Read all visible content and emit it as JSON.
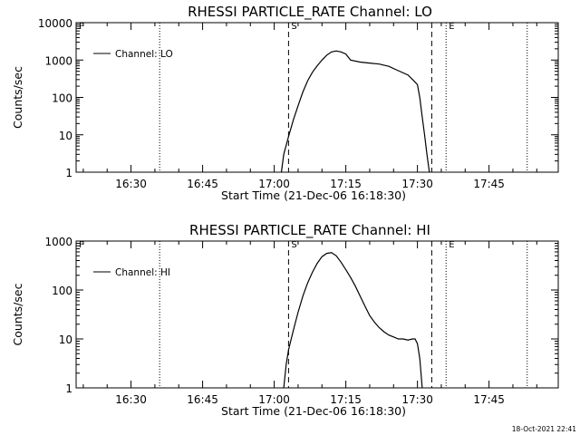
{
  "footer": {
    "timestamp": "18-Oct-2021 22:41"
  },
  "chart_data": [
    {
      "type": "line",
      "title": "RHESSI PARTICLE_RATE Channel: LO",
      "xlabel": "Start Time (21-Dec-06 16:18:30)",
      "ylabel": "Counts/sec",
      "yscale": "log",
      "xlim": [
        "16:18:30",
        "17:59:30"
      ],
      "ylim": [
        1,
        10000
      ],
      "xticks": [
        "16:30",
        "16:45",
        "17:00",
        "17:15",
        "17:30",
        "17:45"
      ],
      "yticks": [
        "1",
        "10",
        "100",
        "1000",
        "10000"
      ],
      "legend": {
        "position": "top-left",
        "entries": [
          "Channel: LO"
        ]
      },
      "markers": [
        {
          "label": "F",
          "time": "16:18:30",
          "style": "none"
        },
        {
          "label": "",
          "time": "16:36:00",
          "style": "dotted"
        },
        {
          "label": "S",
          "time": "17:03:00",
          "style": "dashed"
        },
        {
          "label": "",
          "time": "17:33:00",
          "style": "dashed"
        },
        {
          "label": "E",
          "time": "17:36:00",
          "style": "dotted"
        },
        {
          "label": "",
          "time": "17:53:00",
          "style": "dotted"
        }
      ],
      "series": [
        {
          "name": "Channel: LO",
          "x": [
            "17:01:30",
            "17:02:00",
            "17:03:00",
            "17:04:00",
            "17:05:00",
            "17:06:00",
            "17:07:00",
            "17:08:00",
            "17:09:00",
            "17:10:00",
            "17:11:00",
            "17:12:00",
            "17:13:00",
            "17:14:00",
            "17:15:00",
            "17:16:00",
            "17:18:00",
            "17:20:00",
            "17:22:00",
            "17:24:00",
            "17:26:00",
            "17:28:00",
            "17:29:00",
            "17:30:00",
            "17:30:30",
            "17:31:00",
            "17:31:30",
            "17:32:00",
            "17:32:30"
          ],
          "y": [
            1.0,
            3,
            9,
            25,
            60,
            140,
            280,
            470,
            700,
            1000,
            1350,
            1650,
            1750,
            1650,
            1450,
            1000,
            880,
            830,
            780,
            680,
            520,
            400,
            300,
            220,
            100,
            30,
            10,
            3,
            1.0
          ]
        }
      ]
    },
    {
      "type": "line",
      "title": "RHESSI PARTICLE_RATE Channel: HI",
      "xlabel": "Start Time (21-Dec-06 16:18:30)",
      "ylabel": "Counts/sec",
      "yscale": "log",
      "xlim": [
        "16:18:30",
        "17:59:30"
      ],
      "ylim": [
        1,
        1000
      ],
      "xticks": [
        "16:30",
        "16:45",
        "17:00",
        "17:15",
        "17:30",
        "17:45"
      ],
      "yticks": [
        "1",
        "10",
        "100",
        "1000"
      ],
      "legend": {
        "position": "top-left",
        "entries": [
          "Channel: HI"
        ]
      },
      "markers": [
        {
          "label": "F",
          "time": "16:18:30",
          "style": "none"
        },
        {
          "label": "",
          "time": "16:36:00",
          "style": "dotted"
        },
        {
          "label": "S",
          "time": "17:03:00",
          "style": "dashed"
        },
        {
          "label": "",
          "time": "17:33:00",
          "style": "dashed"
        },
        {
          "label": "E",
          "time": "17:36:00",
          "style": "dotted"
        },
        {
          "label": "",
          "time": "17:53:00",
          "style": "dotted"
        }
      ],
      "series": [
        {
          "name": "Channel: HI",
          "x": [
            "17:02:00",
            "17:02:30",
            "17:03:00",
            "17:04:00",
            "17:05:00",
            "17:06:00",
            "17:07:00",
            "17:08:00",
            "17:09:00",
            "17:10:00",
            "17:11:00",
            "17:12:00",
            "17:13:00",
            "17:14:00",
            "17:15:00",
            "17:16:00",
            "17:17:00",
            "17:18:00",
            "17:19:00",
            "17:20:00",
            "17:21:00",
            "17:22:00",
            "17:23:00",
            "17:24:00",
            "17:25:00",
            "17:26:00",
            "17:27:00",
            "17:28:00",
            "17:29:00",
            "17:29:30",
            "17:30:00",
            "17:30:30",
            "17:31:00"
          ],
          "y": [
            1.0,
            3,
            6,
            15,
            35,
            75,
            140,
            230,
            350,
            480,
            560,
            580,
            500,
            370,
            260,
            180,
            120,
            75,
            47,
            30,
            22,
            17,
            14,
            12,
            11,
            10,
            10,
            9.5,
            10,
            10,
            8,
            4,
            1.0
          ]
        }
      ]
    }
  ]
}
